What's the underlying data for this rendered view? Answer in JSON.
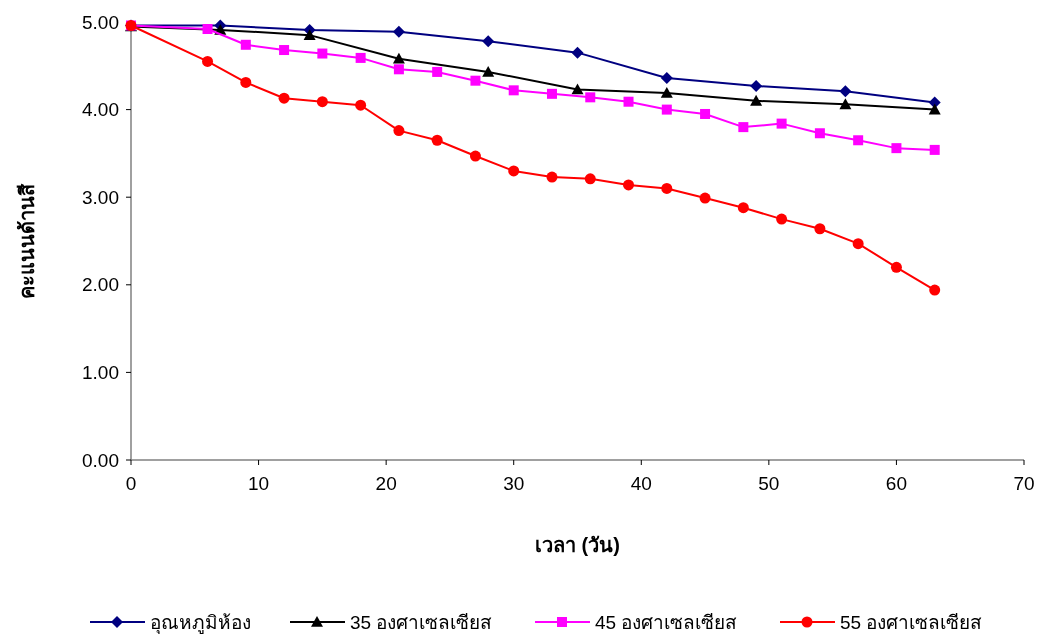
{
  "chart_data": {
    "type": "line",
    "xlabel": "เวลา (วัน)",
    "ylabel": "คะแนนด้านสี",
    "xlim": [
      0,
      70
    ],
    "xticks": [
      0,
      10,
      20,
      30,
      40,
      50,
      60,
      70
    ],
    "ylim": [
      0,
      5
    ],
    "yticks": [
      {
        "value": 0,
        "label": "0.00"
      },
      {
        "value": 1,
        "label": "1.00"
      },
      {
        "value": 2,
        "label": "2.00"
      },
      {
        "value": 3,
        "label": "3.00"
      },
      {
        "value": 4,
        "label": "4.00"
      },
      {
        "value": 5,
        "label": "5.00"
      }
    ],
    "grid": false,
    "legend": "bottom",
    "series": [
      {
        "name": "อุณหภูมิห้อง",
        "color": "#000080",
        "marker": "diamond",
        "x": [
          0,
          7,
          14,
          21,
          28,
          35,
          42,
          49,
          56,
          63
        ],
        "values": [
          4.96,
          4.96,
          4.91,
          4.89,
          4.78,
          4.65,
          4.36,
          4.27,
          4.21,
          4.08
        ]
      },
      {
        "name": "35 องศาเซลเซียส",
        "color": "#000000",
        "marker": "triangle",
        "x": [
          0,
          7,
          14,
          21,
          28,
          35,
          42,
          49,
          56,
          63
        ],
        "values": [
          4.95,
          4.91,
          4.85,
          4.58,
          4.43,
          4.23,
          4.19,
          4.1,
          4.06,
          4.0
        ]
      },
      {
        "name": "45 องศาเซลเซียส",
        "color": "#ff00ff",
        "marker": "square",
        "x": [
          0,
          6,
          9,
          12,
          15,
          18,
          21,
          24,
          27,
          30,
          33,
          36,
          39,
          42,
          45,
          48,
          51,
          54,
          57,
          60,
          63
        ],
        "values": [
          4.96,
          4.92,
          4.74,
          4.68,
          4.64,
          4.59,
          4.46,
          4.43,
          4.33,
          4.22,
          4.18,
          4.14,
          4.09,
          4.0,
          3.95,
          3.8,
          3.84,
          3.73,
          3.65,
          3.56,
          3.54
        ]
      },
      {
        "name": "55 องศาเซลเซียส",
        "color": "#ff0000",
        "marker": "circle",
        "x": [
          0,
          6,
          9,
          12,
          15,
          18,
          21,
          24,
          27,
          30,
          33,
          36,
          39,
          42,
          45,
          48,
          51,
          54,
          57,
          60,
          63
        ],
        "values": [
          4.96,
          4.55,
          4.31,
          4.13,
          4.09,
          4.05,
          3.76,
          3.65,
          3.47,
          3.3,
          3.23,
          3.21,
          3.14,
          3.1,
          2.99,
          2.88,
          2.75,
          2.64,
          2.47,
          2.2,
          1.94
        ]
      }
    ]
  }
}
